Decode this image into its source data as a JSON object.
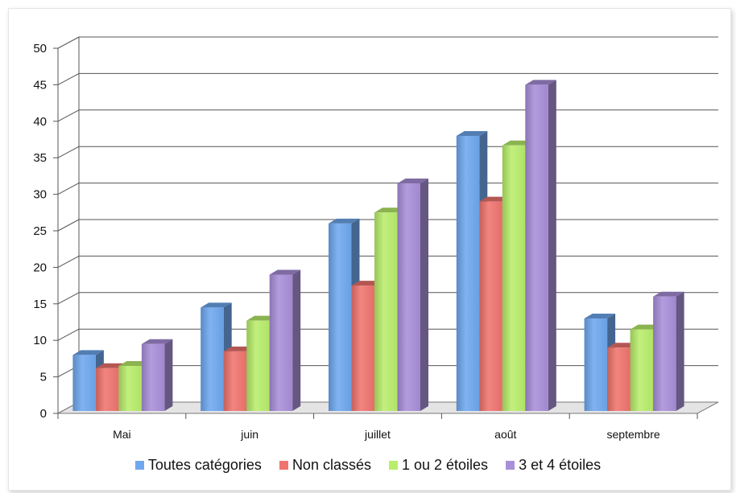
{
  "chart_data": {
    "type": "bar",
    "categories": [
      "Mai",
      "juin",
      "juillet",
      "août",
      "septembre"
    ],
    "series": [
      {
        "name": "Toutes catégories",
        "values": [
          8,
          14.5,
          26,
          38,
          13
        ],
        "color": "#6fa8ef"
      },
      {
        "name": "Non classés",
        "values": [
          6.2,
          8.5,
          17.5,
          29,
          9
        ],
        "color": "#f0746e"
      },
      {
        "name": "1 ou 2 étoiles",
        "values": [
          6.5,
          12.7,
          27.5,
          36.7,
          11.5
        ],
        "color": "#b9ee6b"
      },
      {
        "name": "3 et 4 étoiles",
        "values": [
          9.5,
          19,
          31.5,
          45,
          16
        ],
        "color": "#a98fd9"
      }
    ],
    "ylim": [
      0,
      50
    ],
    "yticks": [
      "0",
      "5",
      "10",
      "15",
      "20",
      "25",
      "30",
      "35",
      "40",
      "45",
      "50"
    ],
    "grid": true,
    "legend_position": "bottom",
    "style": "3d-column"
  }
}
